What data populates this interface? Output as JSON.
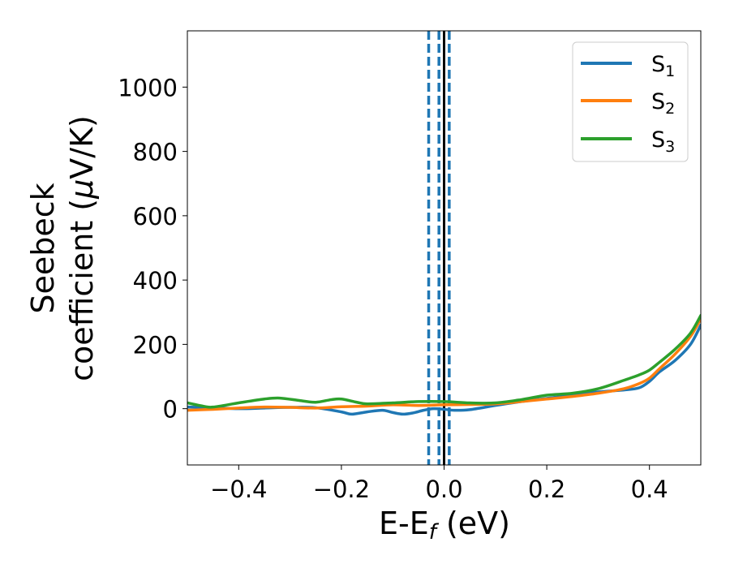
{
  "chart_data": {
    "type": "line",
    "title": "",
    "xlabel": {
      "main": "E-E",
      "sub": "f",
      "unit": " (eV)"
    },
    "ylabel": {
      "line1": "Seebeck",
      "line2": "coefficient  (",
      "mu": "μ",
      "unit_rest": "V/K)"
    },
    "xlim": [
      -0.5,
      0.5
    ],
    "ylim": [
      -175,
      1175
    ],
    "xticks": [
      -0.4,
      -0.2,
      0.0,
      0.2,
      0.4
    ],
    "xtick_labels": [
      "−0.4",
      "−0.2",
      "0.0",
      "0.2",
      "0.4"
    ],
    "yticks": [
      0,
      200,
      400,
      600,
      800,
      1000
    ],
    "ytick_labels": [
      "0",
      "200",
      "400",
      "600",
      "800",
      "1000"
    ],
    "grid": false,
    "legend_position": "top-right",
    "vlines": [
      {
        "x": -0.03,
        "style": "dashed",
        "color": "#1f77b4"
      },
      {
        "x": -0.01,
        "style": "dashed",
        "color": "#1f77b4"
      },
      {
        "x": 0.01,
        "style": "dashed",
        "color": "#1f77b4"
      },
      {
        "x": 0.0,
        "style": "solid",
        "color": "#000000"
      }
    ],
    "series": [
      {
        "name": "S1",
        "label_main": "S",
        "label_sub": "1",
        "color": "#1f77b4",
        "x": [
          -0.5,
          -0.45,
          -0.4,
          -0.35,
          -0.3,
          -0.25,
          -0.2,
          -0.18,
          -0.15,
          -0.12,
          -0.1,
          -0.08,
          -0.06,
          -0.04,
          -0.02,
          0.0,
          0.02,
          0.05,
          0.1,
          0.15,
          0.2,
          0.25,
          0.3,
          0.35,
          0.38,
          0.4,
          0.42,
          0.45,
          0.48,
          0.5
        ],
        "y": [
          5,
          3,
          0,
          2,
          4,
          3,
          -10,
          -17,
          -10,
          -5,
          -12,
          -17,
          -13,
          -5,
          0,
          -2,
          -5,
          -3,
          10,
          22,
          32,
          42,
          52,
          58,
          65,
          85,
          115,
          150,
          200,
          260
        ]
      },
      {
        "name": "S2",
        "label_main": "S",
        "label_sub": "2",
        "color": "#ff7f0e",
        "x": [
          -0.5,
          -0.45,
          -0.4,
          -0.35,
          -0.3,
          -0.25,
          -0.2,
          -0.15,
          -0.1,
          -0.05,
          0.0,
          0.05,
          0.1,
          0.15,
          0.2,
          0.25,
          0.3,
          0.35,
          0.38,
          0.4,
          0.42,
          0.45,
          0.48,
          0.5
        ],
        "y": [
          -5,
          -2,
          2,
          5,
          4,
          2,
          6,
          8,
          12,
          10,
          12,
          13,
          15,
          22,
          30,
          38,
          48,
          62,
          78,
          95,
          125,
          170,
          225,
          280
        ]
      },
      {
        "name": "S3",
        "label_main": "S",
        "label_sub": "3",
        "color": "#2ca02c",
        "x": [
          -0.5,
          -0.47,
          -0.45,
          -0.4,
          -0.35,
          -0.32,
          -0.28,
          -0.25,
          -0.22,
          -0.2,
          -0.17,
          -0.15,
          -0.1,
          -0.05,
          0.0,
          0.05,
          0.1,
          0.15,
          0.2,
          0.25,
          0.3,
          0.35,
          0.38,
          0.4,
          0.42,
          0.45,
          0.48,
          0.5
        ],
        "y": [
          18,
          8,
          5,
          18,
          30,
          33,
          25,
          20,
          28,
          30,
          20,
          15,
          18,
          22,
          22,
          18,
          18,
          28,
          42,
          48,
          62,
          88,
          105,
          120,
          145,
          185,
          235,
          290
        ]
      }
    ]
  }
}
